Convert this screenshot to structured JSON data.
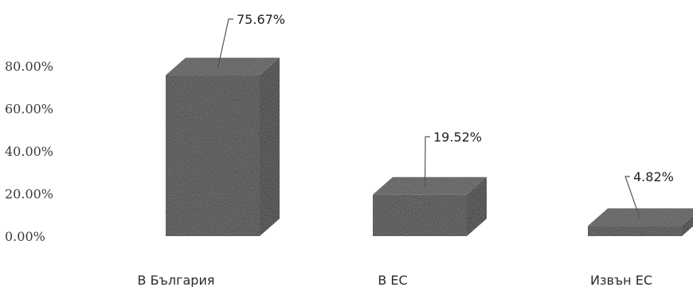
{
  "chart_data": {
    "type": "bar",
    "style": "3d-column",
    "categories": [
      "В  България",
      "В ЕС",
      "Извън ЕС"
    ],
    "values": [
      75.67,
      19.52,
      4.82
    ],
    "data_labels": [
      "75.67%",
      "19.52%",
      "4.82%"
    ],
    "yticks": [
      "0.00%",
      "20.00%",
      "40.00%",
      "60.00%",
      "80.00%"
    ],
    "ytick_values": [
      0,
      20,
      40,
      60,
      80
    ],
    "ylim": [
      0,
      80
    ],
    "title": "",
    "xlabel": "",
    "ylabel": "",
    "grid": false,
    "legend": "none",
    "colors": {
      "bar_front": "#3b3b3b",
      "bar_top": "#505050",
      "bar_side": "#262626",
      "leader": "#555555"
    }
  }
}
